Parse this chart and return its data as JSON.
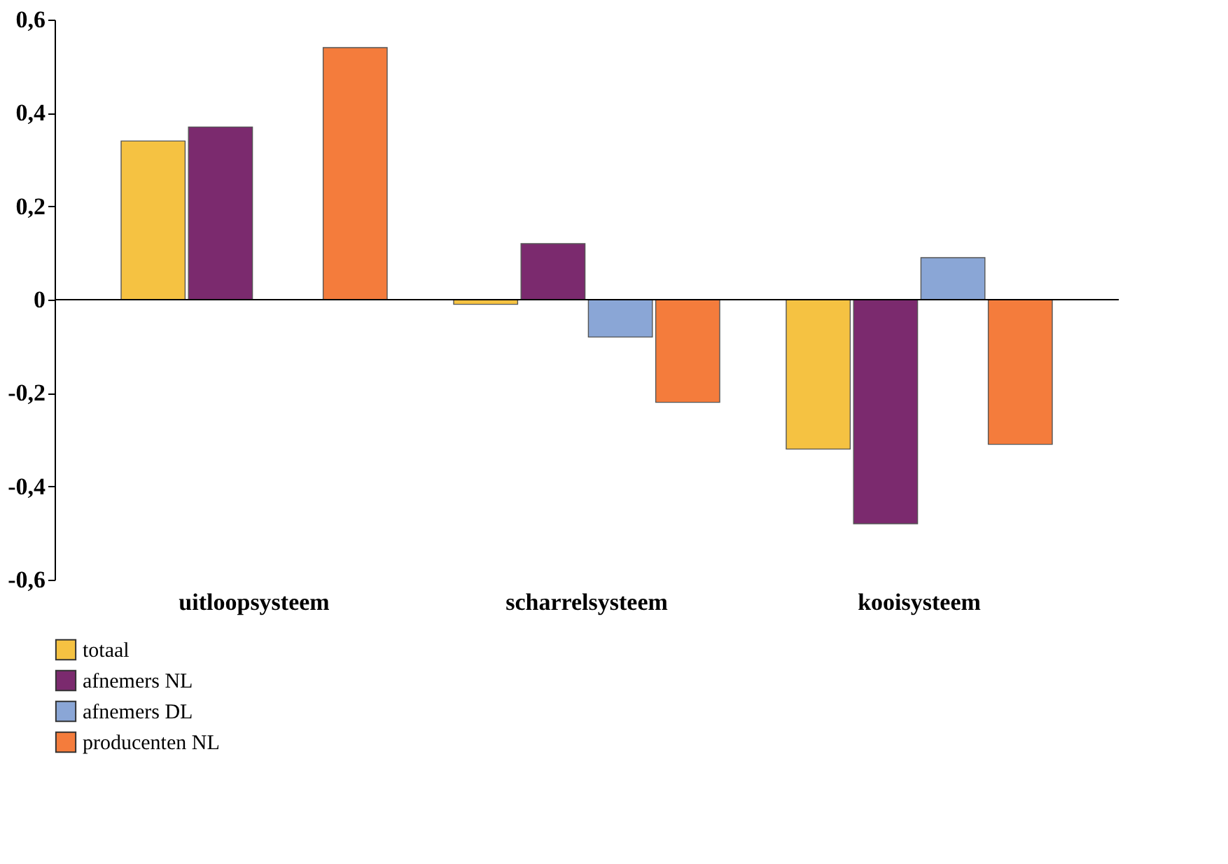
{
  "chart_data": {
    "type": "bar",
    "categories": [
      "uitloopsysteem",
      "scharrelsysteem",
      "kooisysteem"
    ],
    "series": [
      {
        "name": "totaal",
        "color": "#f5c242",
        "values": [
          0.34,
          -0.01,
          -0.32
        ]
      },
      {
        "name": "afnemers NL",
        "color": "#7b2a6e",
        "values": [
          0.37,
          0.12,
          -0.48
        ]
      },
      {
        "name": "afnemers DL",
        "color": "#8aa6d6",
        "values": [
          null,
          -0.08,
          0.09
        ]
      },
      {
        "name": "producenten NL",
        "color": "#f47c3c",
        "values": [
          0.54,
          -0.22,
          -0.31
        ]
      }
    ],
    "ylim": [
      -0.6,
      0.6
    ],
    "yticks": [
      {
        "value": -0.6,
        "label": "-0,6"
      },
      {
        "value": -0.4,
        "label": "-0,4"
      },
      {
        "value": -0.2,
        "label": "-0,2"
      },
      0,
      {
        "value": 0.2,
        "label": "0,2"
      },
      {
        "value": 0.4,
        "label": "0,4"
      },
      {
        "value": 0.6,
        "label": "0,6"
      }
    ],
    "legend": "bottom left"
  }
}
